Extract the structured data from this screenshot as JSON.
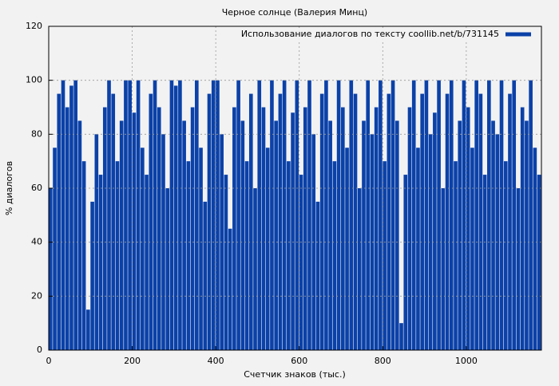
{
  "chart_data": {
    "type": "histogram",
    "title": "Черное солнце (Валерия Минц)",
    "x_label": "Счетчик знаков (тыс.)",
    "y_label": "% диалогов",
    "series_name": "Использование диалогов по тексту coollib.net/b/731145",
    "color": "#0b41a8",
    "bins": [
      0,
      10,
      20,
      30,
      40,
      50,
      60,
      70,
      80,
      90,
      100,
      110,
      120,
      130,
      140,
      150,
      160,
      170,
      180,
      190,
      200,
      210,
      220,
      230,
      240,
      250,
      260,
      270,
      280,
      290,
      300,
      310,
      320,
      330,
      340,
      350,
      360,
      370,
      380,
      390,
      400,
      410,
      420,
      430,
      440,
      450,
      460,
      470,
      480,
      490,
      500,
      510,
      520,
      530,
      540,
      550,
      560,
      570,
      580,
      590,
      600,
      610,
      620,
      630,
      640,
      650,
      660,
      670,
      680,
      690,
      700,
      710,
      720,
      730,
      740,
      750,
      760,
      770,
      780,
      790,
      800,
      810,
      820,
      830,
      840,
      850,
      860,
      870,
      880,
      890,
      900,
      910,
      920,
      930,
      940,
      950,
      960,
      970,
      980,
      990,
      1000,
      1010,
      1020,
      1030,
      1040,
      1050,
      1060,
      1070,
      1080,
      1090,
      1100,
      1110,
      1120,
      1130,
      1140,
      1150,
      1160,
      1170,
      1180
    ],
    "values": [
      60,
      75,
      95,
      100,
      90,
      98,
      100,
      85,
      70,
      15,
      55,
      80,
      65,
      90,
      100,
      95,
      70,
      85,
      100,
      100,
      88,
      100,
      75,
      65,
      95,
      100,
      90,
      80,
      60,
      100,
      98,
      100,
      85,
      70,
      90,
      100,
      75,
      55,
      95,
      100,
      100,
      80,
      65,
      45,
      90,
      100,
      85,
      70,
      95,
      60,
      100,
      90,
      75,
      100,
      85,
      95,
      100,
      70,
      88,
      100,
      65,
      90,
      100,
      80,
      55,
      95,
      100,
      85,
      70,
      100,
      90,
      75,
      100,
      95,
      60,
      85,
      100,
      80,
      90,
      100,
      70,
      95,
      100,
      85,
      10,
      65,
      90,
      100,
      75,
      95,
      100,
      80,
      88,
      100,
      60,
      95,
      100,
      70,
      85,
      100,
      90,
      75,
      100,
      95,
      65,
      100,
      85,
      80,
      100,
      70,
      95,
      100,
      60,
      90,
      85,
      100,
      75,
      65
    ],
    "xlim": [
      0,
      1180
    ],
    "ylim": [
      0,
      120
    ],
    "xticks": [
      0,
      200,
      400,
      600,
      800,
      1000
    ],
    "yticks": [
      0,
      20,
      40,
      60,
      80,
      100,
      120
    ],
    "grid": true,
    "legend": "top-right"
  }
}
